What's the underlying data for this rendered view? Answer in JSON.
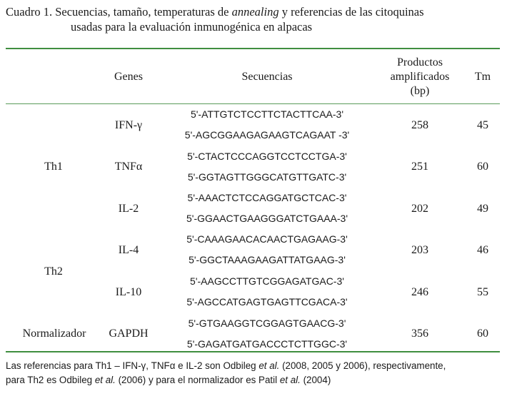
{
  "caption": {
    "line1_pre": "Cuadro 1.  Secuencias, tamaño, temperaturas de ",
    "line1_em": "annealing",
    "line1_post": " y referencias de las citoquinas",
    "line2": "usadas para la evaluación inmunogénica en alpacas"
  },
  "headers": {
    "genes": "Genes",
    "secuencias": "Secuencias",
    "productos_1": "Productos",
    "productos_2": "amplificados",
    "productos_3": "(bp)",
    "tm": "Tm"
  },
  "groups": [
    "Th1",
    "Th2",
    "Normalizador"
  ],
  "rows": [
    {
      "gene": "IFN-γ",
      "fwd": "5'-ATTGTCTCCTTCTACTTCAA-3'",
      "rev": "5'-AGCGGAAGAGAAGTCAGAAT -3'",
      "bp": "258",
      "tm": "45"
    },
    {
      "gene": "TNFα",
      "fwd": "5'-CTACTCCCAGGTCCTCCTGA-3'",
      "rev": "5'-GGTAGTTGGGCATGTTGATC-3'",
      "bp": "251",
      "tm": "60"
    },
    {
      "gene": "IL-2",
      "fwd": "5'-AAACTCTCCAGGATGCTCAC-3'",
      "rev": "5'-GGAACTGAAGGGATCTGAAA-3'",
      "bp": "202",
      "tm": "49"
    },
    {
      "gene": "IL-4",
      "fwd": "5'-CAAAGAACACAACTGAGAAG-3'",
      "rev": "5'-GGCTAAAGAAGATTATGAAG-3'",
      "bp": "203",
      "tm": "46"
    },
    {
      "gene": "IL-10",
      "fwd": "5'-AAGCCTTGTCGGAGATGAC-3'",
      "rev": "5'-AGCCATGAGTGAGTTCGACA-3'",
      "bp": "246",
      "tm": "55"
    },
    {
      "gene": "GAPDH",
      "fwd": "5'-GTGAAGGTCGGAGTGAACG-3'",
      "rev": "5'-GAGATGATGACCCTCTTGGC-3'",
      "bp": "356",
      "tm": "60"
    }
  ],
  "footnote": {
    "l1_a": "Las referencias para Th1 – IFN-γ, TNFα e IL-2 son Odbileg ",
    "l1_em": "et al.",
    "l1_b": " (2008, 2005 y 2006), respectivamente,",
    "l2_a": "para Th2 es Odbileg ",
    "l2_em1": "et al.",
    "l2_b": " (2006) y para el normalizador es Patil ",
    "l2_em2": "et al.",
    "l2_c": " (2004)"
  }
}
